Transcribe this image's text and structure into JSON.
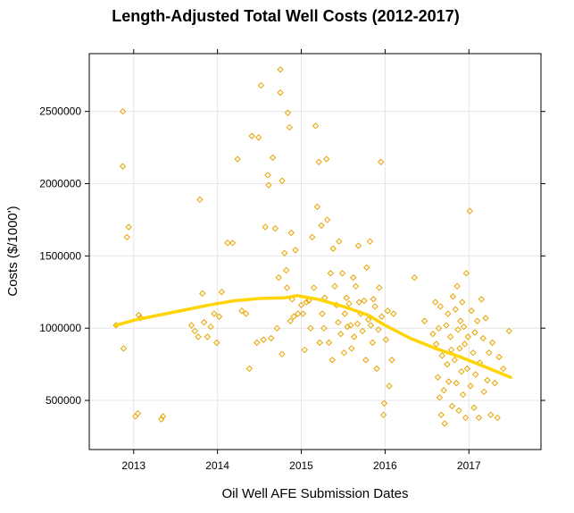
{
  "chart_data": {
    "type": "scatter",
    "title": "Length-Adjusted Total Well Costs (2012-2017)",
    "xlabel": "Oil Well AFE Submission Dates",
    "ylabel": "Costs ($/1000')",
    "xlim": [
      2012.47,
      2017.86
    ],
    "ylim": [
      160000,
      2900000
    ],
    "x_ticks": [
      2013,
      2014,
      2015,
      2016,
      2017
    ],
    "x_tick_labels": [
      "2013",
      "2014",
      "2015",
      "2016",
      "2017"
    ],
    "y_ticks": [
      500000,
      1000000,
      1500000,
      2000000,
      2500000
    ],
    "y_tick_labels": [
      "500000",
      "1000000",
      "1500000",
      "2000000",
      "2500000"
    ],
    "grid": true,
    "point_color": "#e8a400",
    "line_color": "#ffd400",
    "series": [
      {
        "type": "scatter",
        "points": [
          [
            2012.79,
            1020000
          ],
          [
            2012.87,
            2500000
          ],
          [
            2012.87,
            2120000
          ],
          [
            2012.88,
            860000
          ],
          [
            2012.92,
            1630000
          ],
          [
            2012.94,
            1700000
          ],
          [
            2013.02,
            390000
          ],
          [
            2013.05,
            410000
          ],
          [
            2013.06,
            1090000
          ],
          [
            2013.08,
            1070000
          ],
          [
            2013.33,
            370000
          ],
          [
            2013.35,
            390000
          ],
          [
            2013.69,
            1020000
          ],
          [
            2013.73,
            980000
          ],
          [
            2013.77,
            940000
          ],
          [
            2013.79,
            1890000
          ],
          [
            2013.82,
            1240000
          ],
          [
            2013.84,
            1040000
          ],
          [
            2013.88,
            940000
          ],
          [
            2013.92,
            1010000
          ],
          [
            2013.96,
            1100000
          ],
          [
            2013.99,
            900000
          ],
          [
            2014.02,
            1080000
          ],
          [
            2014.05,
            1250000
          ],
          [
            2014.12,
            1590000
          ],
          [
            2014.18,
            1590000
          ],
          [
            2014.24,
            2170000
          ],
          [
            2014.29,
            1120000
          ],
          [
            2014.34,
            1100000
          ],
          [
            2014.38,
            720000
          ],
          [
            2014.41,
            2330000
          ],
          [
            2014.47,
            900000
          ],
          [
            2014.49,
            2320000
          ],
          [
            2014.52,
            2680000
          ],
          [
            2014.55,
            920000
          ],
          [
            2014.57,
            1700000
          ],
          [
            2014.6,
            2060000
          ],
          [
            2014.61,
            1990000
          ],
          [
            2014.64,
            930000
          ],
          [
            2014.66,
            2180000
          ],
          [
            2014.69,
            1690000
          ],
          [
            2014.71,
            1000000
          ],
          [
            2014.73,
            1350000
          ],
          [
            2014.75,
            2630000
          ],
          [
            2014.75,
            2790000
          ],
          [
            2014.77,
            2020000
          ],
          [
            2014.77,
            820000
          ],
          [
            2014.8,
            1520000
          ],
          [
            2014.82,
            1400000
          ],
          [
            2014.83,
            1280000
          ],
          [
            2014.84,
            2490000
          ],
          [
            2014.86,
            2390000
          ],
          [
            2014.87,
            1050000
          ],
          [
            2014.88,
            1660000
          ],
          [
            2014.89,
            1200000
          ],
          [
            2014.91,
            1080000
          ],
          [
            2014.93,
            1540000
          ],
          [
            2014.96,
            1100000
          ],
          [
            2015.0,
            1160000
          ],
          [
            2015.02,
            1100000
          ],
          [
            2015.04,
            850000
          ],
          [
            2015.06,
            1180000
          ],
          [
            2015.09,
            1190000
          ],
          [
            2015.11,
            1000000
          ],
          [
            2015.13,
            1630000
          ],
          [
            2015.15,
            1280000
          ],
          [
            2015.17,
            2400000
          ],
          [
            2015.19,
            1840000
          ],
          [
            2015.21,
            2150000
          ],
          [
            2015.22,
            900000
          ],
          [
            2015.24,
            1710000
          ],
          [
            2015.25,
            1100000
          ],
          [
            2015.27,
            1000000
          ],
          [
            2015.28,
            1210000
          ],
          [
            2015.3,
            2170000
          ],
          [
            2015.31,
            1750000
          ],
          [
            2015.33,
            900000
          ],
          [
            2015.35,
            1380000
          ],
          [
            2015.37,
            780000
          ],
          [
            2015.38,
            1550000
          ],
          [
            2015.4,
            1290000
          ],
          [
            2015.42,
            1160000
          ],
          [
            2015.44,
            1040000
          ],
          [
            2015.45,
            1600000
          ],
          [
            2015.47,
            960000
          ],
          [
            2015.49,
            1380000
          ],
          [
            2015.51,
            830000
          ],
          [
            2015.52,
            1100000
          ],
          [
            2015.54,
            1210000
          ],
          [
            2015.55,
            1010000
          ],
          [
            2015.57,
            1170000
          ],
          [
            2015.59,
            1020000
          ],
          [
            2015.6,
            860000
          ],
          [
            2015.62,
            1350000
          ],
          [
            2015.63,
            940000
          ],
          [
            2015.65,
            1290000
          ],
          [
            2015.67,
            1030000
          ],
          [
            2015.68,
            1570000
          ],
          [
            2015.69,
            1180000
          ],
          [
            2015.71,
            1100000
          ],
          [
            2015.73,
            980000
          ],
          [
            2015.75,
            1190000
          ],
          [
            2015.77,
            780000
          ],
          [
            2015.78,
            1420000
          ],
          [
            2015.8,
            1060000
          ],
          [
            2015.82,
            1600000
          ],
          [
            2015.83,
            1020000
          ],
          [
            2015.85,
            900000
          ],
          [
            2015.86,
            1200000
          ],
          [
            2015.88,
            1150000
          ],
          [
            2015.9,
            720000
          ],
          [
            2015.92,
            990000
          ],
          [
            2015.93,
            1280000
          ],
          [
            2015.95,
            2150000
          ],
          [
            2015.96,
            1080000
          ],
          [
            2015.98,
            400000
          ],
          [
            2015.99,
            480000
          ],
          [
            2016.01,
            920000
          ],
          [
            2016.03,
            1120000
          ],
          [
            2016.05,
            600000
          ],
          [
            2016.08,
            780000
          ],
          [
            2016.1,
            1100000
          ],
          [
            2016.35,
            1350000
          ],
          [
            2016.47,
            1050000
          ],
          [
            2016.57,
            960000
          ],
          [
            2016.6,
            1180000
          ],
          [
            2016.61,
            890000
          ],
          [
            2016.63,
            660000
          ],
          [
            2016.64,
            1000000
          ],
          [
            2016.65,
            520000
          ],
          [
            2016.66,
            1150000
          ],
          [
            2016.67,
            400000
          ],
          [
            2016.68,
            810000
          ],
          [
            2016.7,
            570000
          ],
          [
            2016.71,
            340000
          ],
          [
            2016.73,
            1020000
          ],
          [
            2016.74,
            750000
          ],
          [
            2016.75,
            1100000
          ],
          [
            2016.76,
            630000
          ],
          [
            2016.78,
            940000
          ],
          [
            2016.79,
            850000
          ],
          [
            2016.8,
            460000
          ],
          [
            2016.81,
            1220000
          ],
          [
            2016.83,
            780000
          ],
          [
            2016.84,
            1130000
          ],
          [
            2016.85,
            620000
          ],
          [
            2016.86,
            1290000
          ],
          [
            2016.87,
            990000
          ],
          [
            2016.88,
            430000
          ],
          [
            2016.89,
            860000
          ],
          [
            2016.9,
            1050000
          ],
          [
            2016.91,
            700000
          ],
          [
            2016.92,
            1180000
          ],
          [
            2016.93,
            540000
          ],
          [
            2016.94,
            1010000
          ],
          [
            2016.95,
            890000
          ],
          [
            2016.96,
            380000
          ],
          [
            2016.97,
            1380000
          ],
          [
            2016.98,
            720000
          ],
          [
            2016.99,
            940000
          ],
          [
            2017.01,
            1810000
          ],
          [
            2017.02,
            600000
          ],
          [
            2017.03,
            1120000
          ],
          [
            2017.05,
            830000
          ],
          [
            2017.06,
            450000
          ],
          [
            2017.07,
            970000
          ],
          [
            2017.08,
            680000
          ],
          [
            2017.1,
            1050000
          ],
          [
            2017.12,
            380000
          ],
          [
            2017.13,
            760000
          ],
          [
            2017.15,
            1200000
          ],
          [
            2017.17,
            930000
          ],
          [
            2017.18,
            560000
          ],
          [
            2017.2,
            1070000
          ],
          [
            2017.22,
            640000
          ],
          [
            2017.24,
            830000
          ],
          [
            2017.26,
            400000
          ],
          [
            2017.28,
            900000
          ],
          [
            2017.31,
            620000
          ],
          [
            2017.34,
            380000
          ],
          [
            2017.36,
            800000
          ],
          [
            2017.41,
            720000
          ],
          [
            2017.48,
            980000
          ]
        ]
      },
      {
        "type": "line",
        "points": [
          [
            2012.79,
            1020000
          ],
          [
            2013.0,
            1055000
          ],
          [
            2013.3,
            1090000
          ],
          [
            2013.6,
            1125000
          ],
          [
            2013.9,
            1160000
          ],
          [
            2014.2,
            1190000
          ],
          [
            2014.5,
            1205000
          ],
          [
            2014.8,
            1210000
          ],
          [
            2014.95,
            1225000
          ],
          [
            2015.2,
            1200000
          ],
          [
            2015.5,
            1150000
          ],
          [
            2015.8,
            1090000
          ],
          [
            2016.0,
            1020000
          ],
          [
            2016.3,
            930000
          ],
          [
            2016.6,
            860000
          ],
          [
            2016.9,
            800000
          ],
          [
            2017.2,
            730000
          ],
          [
            2017.5,
            660000
          ]
        ]
      }
    ]
  }
}
